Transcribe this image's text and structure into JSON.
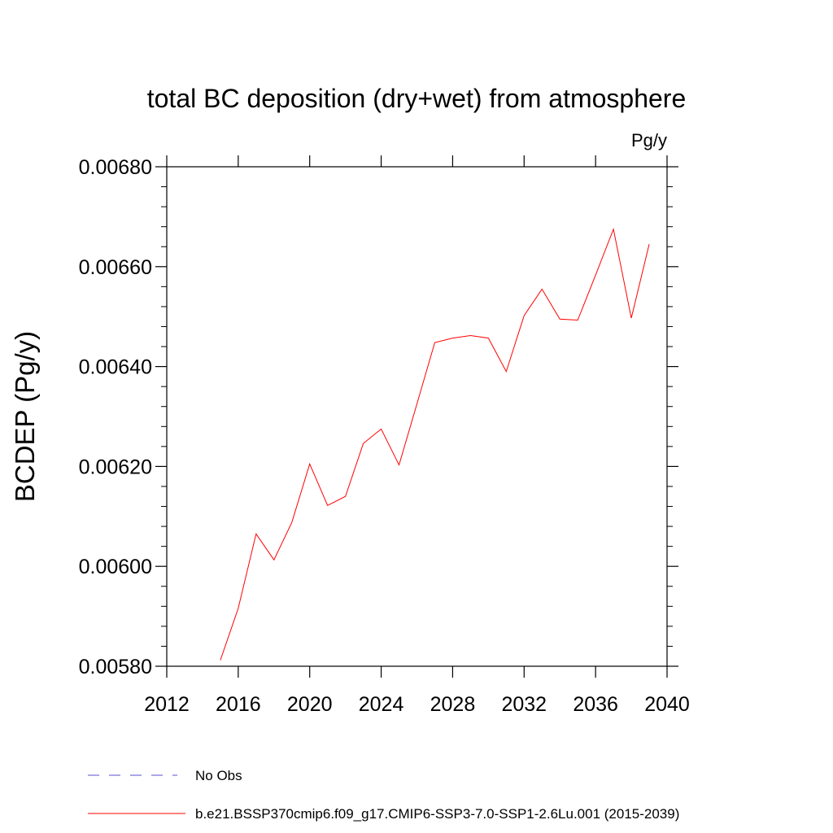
{
  "chart_data": {
    "type": "line",
    "title": "total BC deposition (dry+wet) from atmosphere",
    "units_label": "Pg/y",
    "ylabel": "BCDEP  (Pg/y)",
    "xlabel": "",
    "xlim": [
      2012,
      2040
    ],
    "ylim": [
      0.0058,
      0.0068
    ],
    "x_ticks": [
      2012,
      2016,
      2020,
      2024,
      2028,
      2032,
      2036,
      2040
    ],
    "x_tick_labels": [
      "2012",
      "2016",
      "2020",
      "2024",
      "2028",
      "2032",
      "2036",
      "2040"
    ],
    "y_ticks": [
      0.0058,
      0.006,
      0.0062,
      0.0064,
      0.0066,
      0.0068
    ],
    "y_tick_labels": [
      "0.00580",
      "0.00600",
      "0.00620",
      "0.00640",
      "0.00660",
      "0.00680"
    ],
    "grid": false,
    "legend_position": "bottom",
    "series": [
      {
        "name": "b.e21.BSSP370cmip6.f09_g17.CMIP6-SSP3-7.0-SSP1-2.6Lu.001 (2015-2039)",
        "color": "#ff0000",
        "style": "solid",
        "x": [
          2015,
          2016,
          2017,
          2018,
          2019,
          2020,
          2021,
          2022,
          2023,
          2024,
          2025,
          2026,
          2027,
          2028,
          2029,
          2030,
          2031,
          2032,
          2033,
          2034,
          2035,
          2036,
          2037,
          2038,
          2039
        ],
        "values": [
          0.005812,
          0.005916,
          0.006065,
          0.006013,
          0.006088,
          0.006205,
          0.006122,
          0.00614,
          0.006246,
          0.006275,
          0.006203,
          0.006325,
          0.006448,
          0.006457,
          0.006462,
          0.006457,
          0.00639,
          0.006502,
          0.006555,
          0.006495,
          0.006493,
          0.006583,
          0.006675,
          0.006497,
          0.006645
        ]
      }
    ],
    "legend": [
      {
        "label": "No Obs",
        "color": "#5a4fcf",
        "style": "dashed"
      },
      {
        "label": "b.e21.BSSP370cmip6.f09_g17.CMIP6-SSP3-7.0-SSP1-2.6Lu.001 (2015-2039)",
        "color": "#ff0000",
        "style": "solid"
      }
    ]
  }
}
